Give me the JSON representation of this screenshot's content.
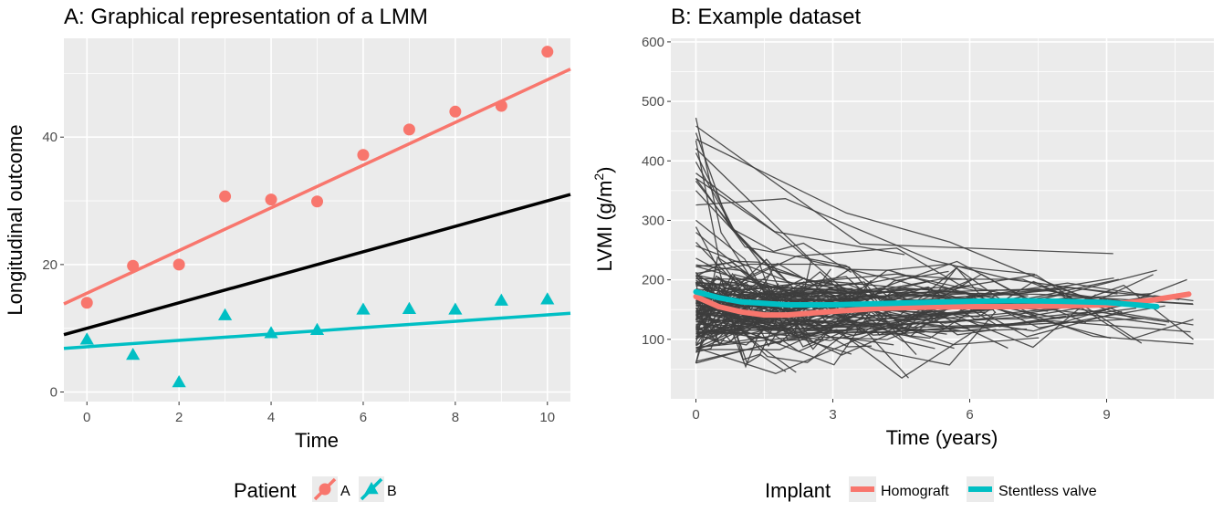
{
  "chart_data": [
    {
      "type": "scatter",
      "title": "A: Graphical representation of a LMM",
      "xlabel": "Time",
      "ylabel": "Longitudinal outcome",
      "xlim": [
        -0.5,
        10.5
      ],
      "ylim": [
        -1.5,
        55.5
      ],
      "x_ticks": [
        0,
        2,
        4,
        6,
        8,
        10
      ],
      "y_ticks": [
        0,
        20,
        40
      ],
      "grid": true,
      "legend": {
        "title": "Patient",
        "position": "bottom",
        "entries": [
          "A",
          "B"
        ]
      },
      "series": [
        {
          "name": "A",
          "color": "#f8766d",
          "marker": "circle",
          "x": [
            0,
            1,
            2,
            3,
            4,
            5,
            6,
            7,
            8,
            9,
            10
          ],
          "y": [
            14.0,
            19.8,
            20.0,
            30.7,
            30.2,
            29.9,
            37.2,
            41.2,
            44.0,
            44.9,
            53.4
          ],
          "fit": {
            "intercept": 15.5,
            "slope": 3.35
          }
        },
        {
          "name": "B",
          "color": "#00bfc4",
          "marker": "triangle",
          "x": [
            0,
            1,
            2,
            3,
            4,
            5,
            6,
            7,
            8,
            9,
            10
          ],
          "y": [
            8.2,
            5.8,
            1.5,
            12.0,
            9.2,
            9.7,
            12.9,
            13.0,
            12.9,
            14.3,
            14.5
          ],
          "fit": {
            "intercept": 7.1,
            "slope": 0.5
          }
        }
      ],
      "population_fit": {
        "color": "#000000",
        "intercept": 10.0,
        "slope": 2.0
      }
    },
    {
      "type": "line",
      "title": "B: Example dataset",
      "xlabel": "Time (years)",
      "ylabel": "LVMI (g/m",
      "ylabel_superscript": "2",
      "ylabel_suffix": ")",
      "xlim": [
        -0.55,
        11.35
      ],
      "ylim": [
        0,
        606
      ],
      "x_ticks": [
        0,
        3,
        6,
        9
      ],
      "y_ticks": [
        100,
        200,
        300,
        400,
        500,
        600
      ],
      "grid": true,
      "individual_trajectories": {
        "color": "#3d3d3d",
        "count": 150
      },
      "legend": {
        "title": "Implant",
        "position": "bottom",
        "entries": [
          "Homograft",
          "Stentless valve"
        ]
      },
      "series": [
        {
          "name": "Homograft",
          "color": "#f8766d",
          "x": [
            0,
            0.5,
            1,
            1.5,
            2,
            3,
            4,
            5,
            6,
            7,
            8,
            9,
            10,
            10.8
          ],
          "y": [
            172,
            155,
            146,
            141,
            141,
            147,
            152,
            154,
            155,
            155,
            156,
            158,
            166,
            176
          ]
        },
        {
          "name": "Stentless valve",
          "color": "#00bfc4",
          "x": [
            0,
            0.5,
            1,
            2,
            3,
            4,
            5,
            6,
            7,
            8,
            9,
            10.1
          ],
          "y": [
            180,
            170,
            163,
            158,
            158,
            160,
            162,
            164,
            165,
            164,
            162,
            155
          ]
        }
      ]
    }
  ]
}
